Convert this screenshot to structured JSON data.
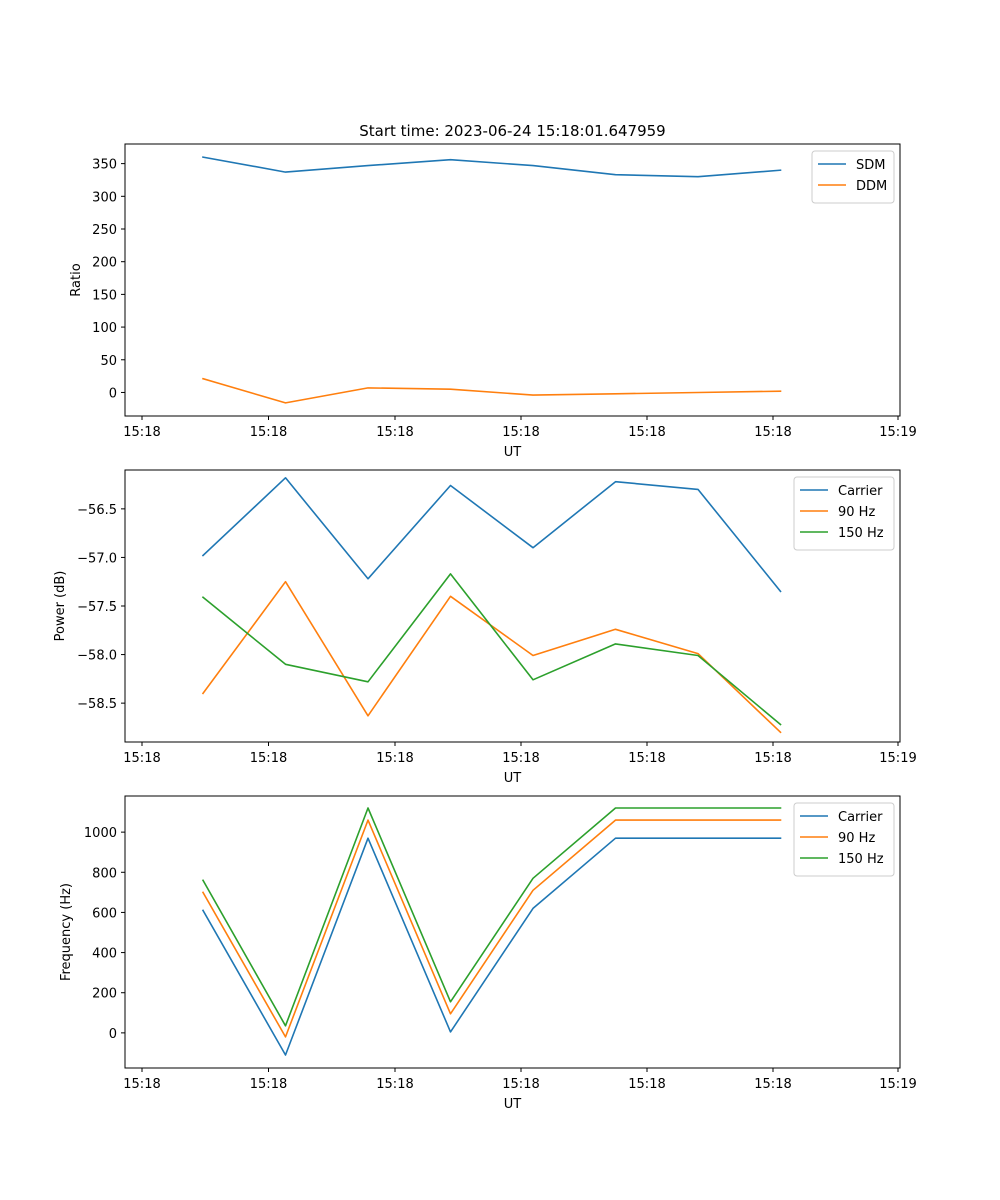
{
  "chart_data": [
    {
      "type": "line",
      "title": "Start time: 2023-06-24 15:18:01.647959",
      "xlabel": "UT",
      "ylabel": "Ratio",
      "x_ticklabels": [
        "15:18",
        "15:18",
        "15:18",
        "15:18",
        "15:18",
        "15:18",
        "15:19"
      ],
      "y_ticks": [
        0,
        50,
        100,
        150,
        200,
        250,
        300,
        350
      ],
      "ylim": [
        -36,
        380
      ],
      "legend_position": "top-right",
      "series": [
        {
          "name": "SDM",
          "color": "#1f77b4",
          "values": [
            360,
            337,
            347,
            356,
            347,
            333,
            330,
            340
          ]
        },
        {
          "name": "DDM",
          "color": "#ff7f0e",
          "values": [
            21,
            -16,
            7,
            5,
            -4,
            -2,
            0,
            2
          ]
        }
      ]
    },
    {
      "type": "line",
      "title": "",
      "xlabel": "UT",
      "ylabel": "Power (dB)",
      "x_ticklabels": [
        "15:18",
        "15:18",
        "15:18",
        "15:18",
        "15:18",
        "15:18",
        "15:19"
      ],
      "y_ticks": [
        -58.5,
        -58.0,
        -57.5,
        -57.0,
        -56.5
      ],
      "y_ticklabels": [
        "−58.5",
        "−58.0",
        "−57.5",
        "−57.0",
        "−56.5"
      ],
      "ylim": [
        -58.9,
        -56.1
      ],
      "legend_position": "top-right",
      "series": [
        {
          "name": "Carrier",
          "color": "#1f77b4",
          "values": [
            -56.98,
            -56.18,
            -57.22,
            -56.26,
            -56.9,
            -56.22,
            -56.3,
            -57.35
          ]
        },
        {
          "name": "90 Hz",
          "color": "#ff7f0e",
          "values": [
            -58.4,
            -57.25,
            -58.63,
            -57.4,
            -58.01,
            -57.74,
            -57.99,
            -58.8
          ]
        },
        {
          "name": "150 Hz",
          "color": "#2ca02c",
          "values": [
            -57.41,
            -58.1,
            -58.28,
            -57.17,
            -58.26,
            -57.89,
            -58.01,
            -58.72
          ]
        }
      ]
    },
    {
      "type": "line",
      "title": "",
      "xlabel": "UT",
      "ylabel": "Frequency (Hz)",
      "x_ticklabels": [
        "15:18",
        "15:18",
        "15:18",
        "15:18",
        "15:18",
        "15:18",
        "15:19"
      ],
      "y_ticks": [
        0,
        200,
        400,
        600,
        800,
        1000
      ],
      "ylim": [
        -175,
        1180
      ],
      "legend_position": "top-right",
      "series": [
        {
          "name": "Carrier",
          "color": "#1f77b4",
          "values": [
            610,
            -110,
            970,
            5,
            620,
            970,
            970,
            970
          ]
        },
        {
          "name": "90 Hz",
          "color": "#ff7f0e",
          "values": [
            700,
            -20,
            1060,
            95,
            710,
            1060,
            1060,
            1060
          ]
        },
        {
          "name": "150 Hz",
          "color": "#2ca02c",
          "values": [
            760,
            35,
            1120,
            155,
            770,
            1120,
            1120,
            1120
          ]
        }
      ]
    }
  ]
}
